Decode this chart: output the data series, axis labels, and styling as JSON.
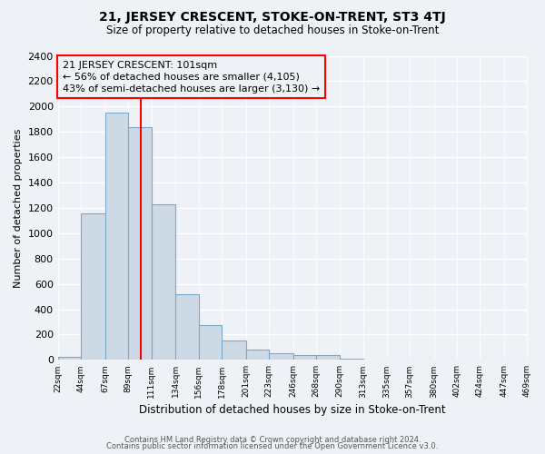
{
  "title": "21, JERSEY CRESCENT, STOKE-ON-TRENT, ST3 4TJ",
  "subtitle": "Size of property relative to detached houses in Stoke-on-Trent",
  "xlabel": "Distribution of detached houses by size in Stoke-on-Trent",
  "ylabel": "Number of detached properties",
  "bar_color": "#cdd9e5",
  "bar_edge_color": "#7aaac8",
  "vline_x": 101,
  "vline_color": "red",
  "annotation_title": "21 JERSEY CRESCENT: 101sqm",
  "annotation_line1": "← 56% of detached houses are smaller (4,105)",
  "annotation_line2": "43% of semi-detached houses are larger (3,130) →",
  "bin_edges": [
    22,
    44,
    67,
    89,
    111,
    134,
    156,
    178,
    201,
    223,
    246,
    268,
    290,
    313,
    335,
    357,
    380,
    402,
    424,
    447,
    469
  ],
  "bar_heights": [
    25,
    1155,
    1950,
    1840,
    1225,
    520,
    275,
    150,
    80,
    50,
    40,
    35,
    10,
    5,
    2,
    2,
    1,
    1,
    0,
    0
  ],
  "ylim": [
    0,
    2400
  ],
  "yticks": [
    0,
    200,
    400,
    600,
    800,
    1000,
    1200,
    1400,
    1600,
    1800,
    2000,
    2200,
    2400
  ],
  "footnote1": "Contains HM Land Registry data © Crown copyright and database right 2024.",
  "footnote2": "Contains public sector information licensed under the Open Government Licence v3.0.",
  "background_color": "#eef2f7"
}
